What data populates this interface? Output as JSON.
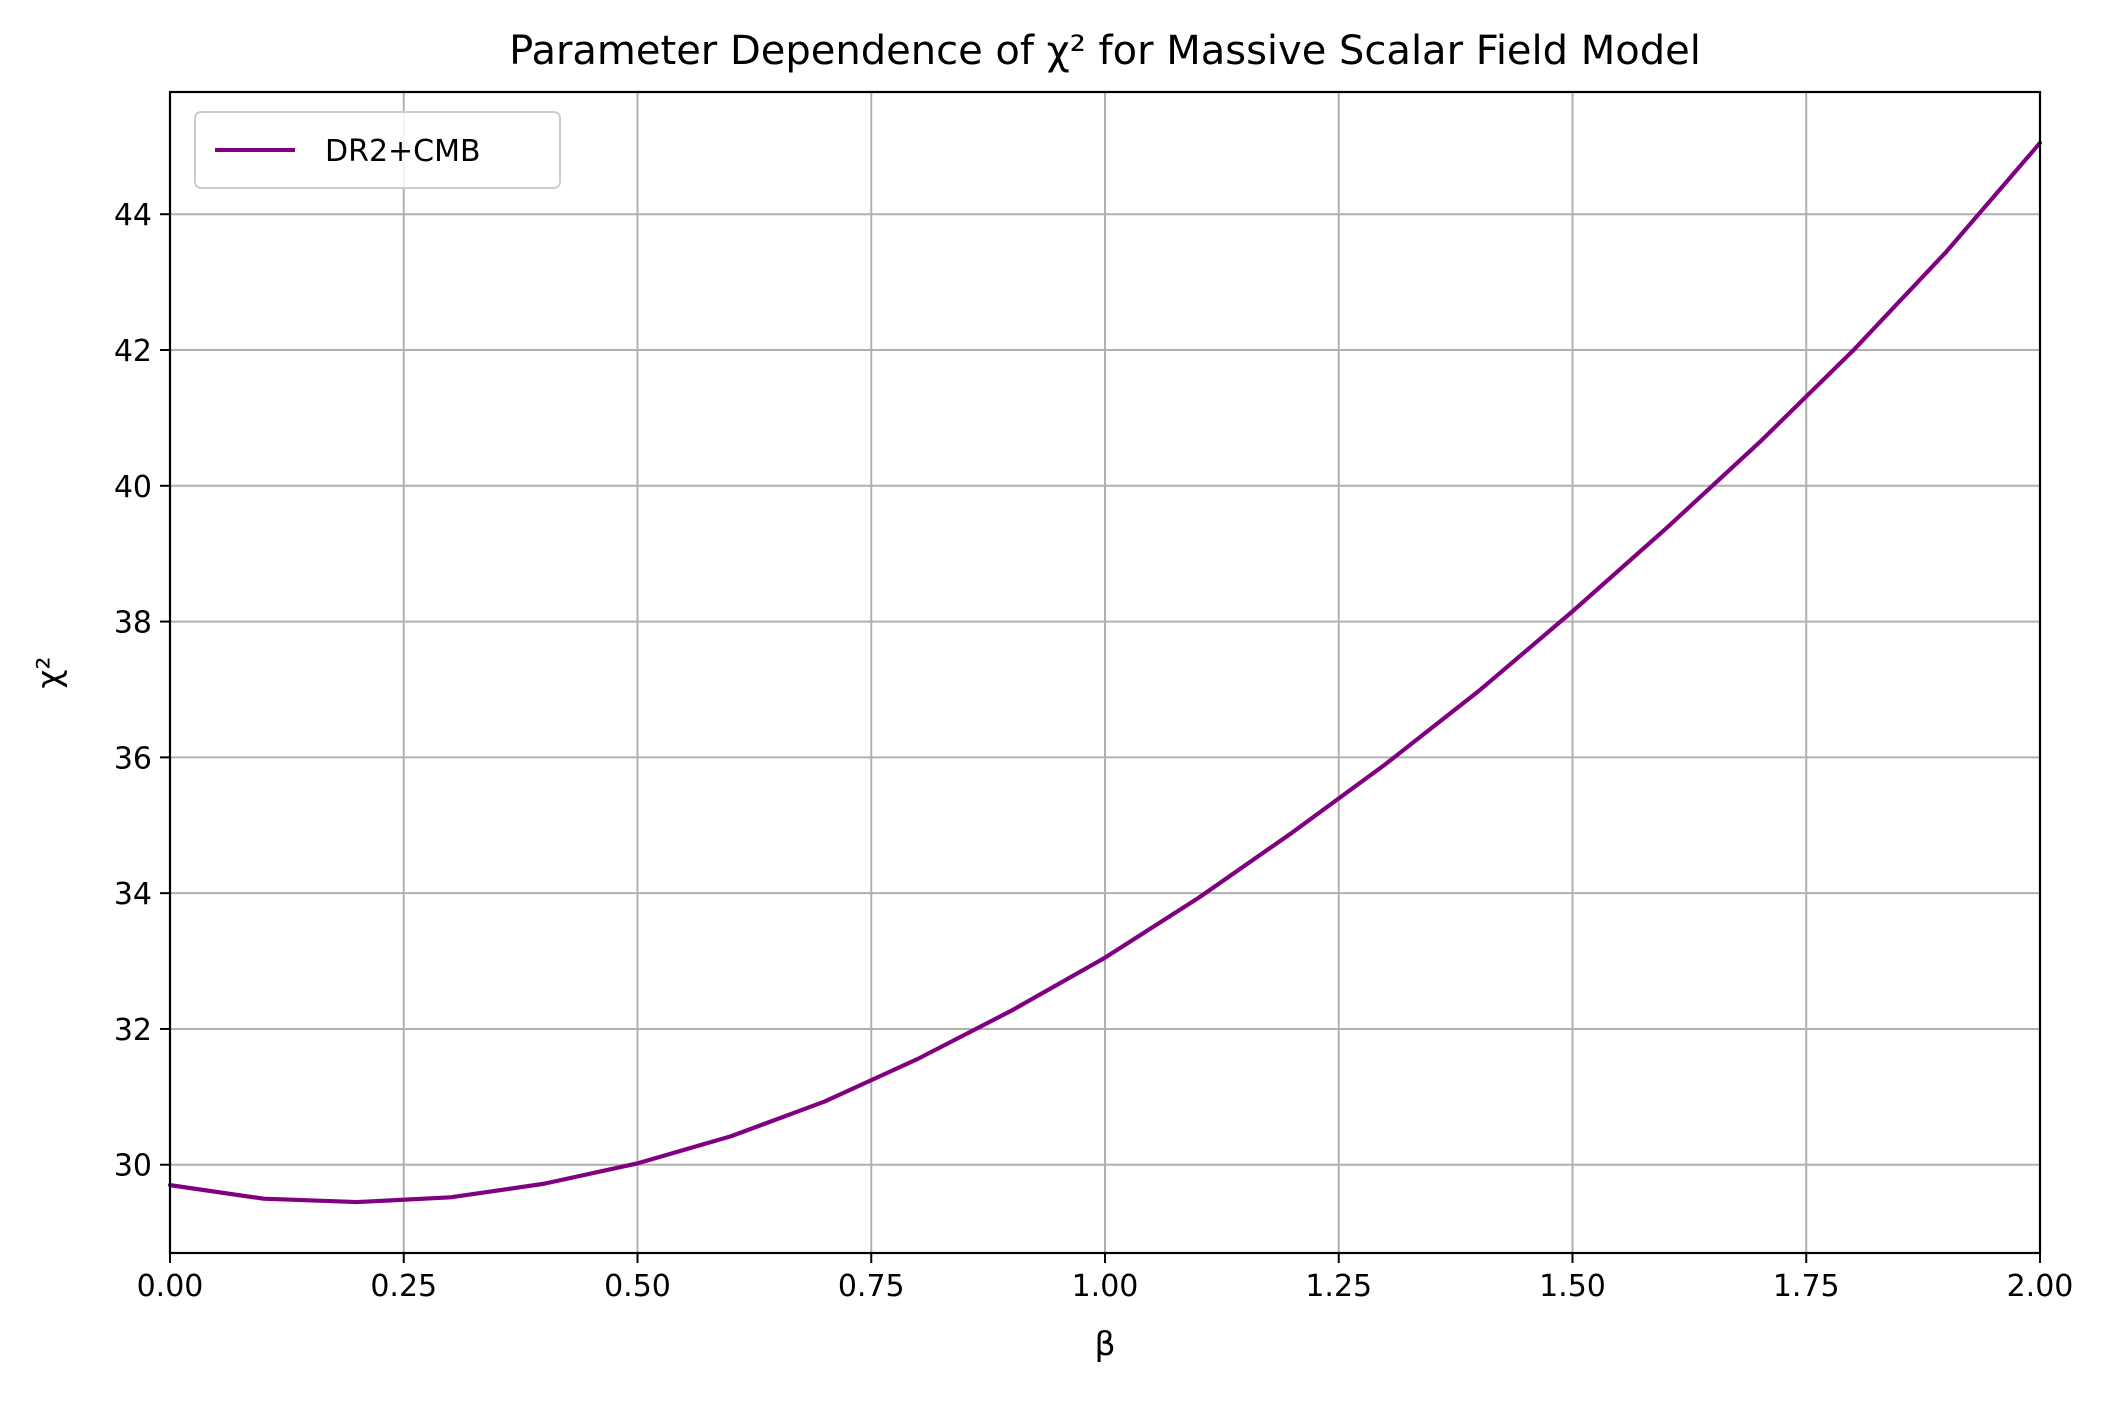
{
  "chart_data": {
    "type": "line",
    "title": "Parameter Dependence of χ² for Massive Scalar Field Model",
    "xlabel": "β",
    "ylabel": "χ²",
    "xlim": [
      0.0,
      2.0
    ],
    "ylim": [
      28.7,
      45.8
    ],
    "xticks": [
      "0.00",
      "0.25",
      "0.50",
      "0.75",
      "1.00",
      "1.25",
      "1.50",
      "1.75",
      "2.00"
    ],
    "yticks": [
      "30",
      "32",
      "34",
      "36",
      "38",
      "40",
      "42",
      "44"
    ],
    "grid": true,
    "legend_position": "top-left",
    "series": [
      {
        "name": "DR2+CMB",
        "color": "#800080",
        "x": [
          0.0,
          0.1,
          0.2,
          0.3,
          0.4,
          0.5,
          0.6,
          0.7,
          0.8,
          0.9,
          1.0,
          1.1,
          1.2,
          1.3,
          1.4,
          1.5,
          1.6,
          1.7,
          1.8,
          1.9,
          2.0
        ],
        "y": [
          29.7,
          29.5,
          29.45,
          29.52,
          29.72,
          30.02,
          30.42,
          30.93,
          31.56,
          32.27,
          33.05,
          33.93,
          34.89,
          35.9,
          36.98,
          38.15,
          39.37,
          40.64,
          41.99,
          43.45,
          45.05
        ]
      }
    ]
  }
}
